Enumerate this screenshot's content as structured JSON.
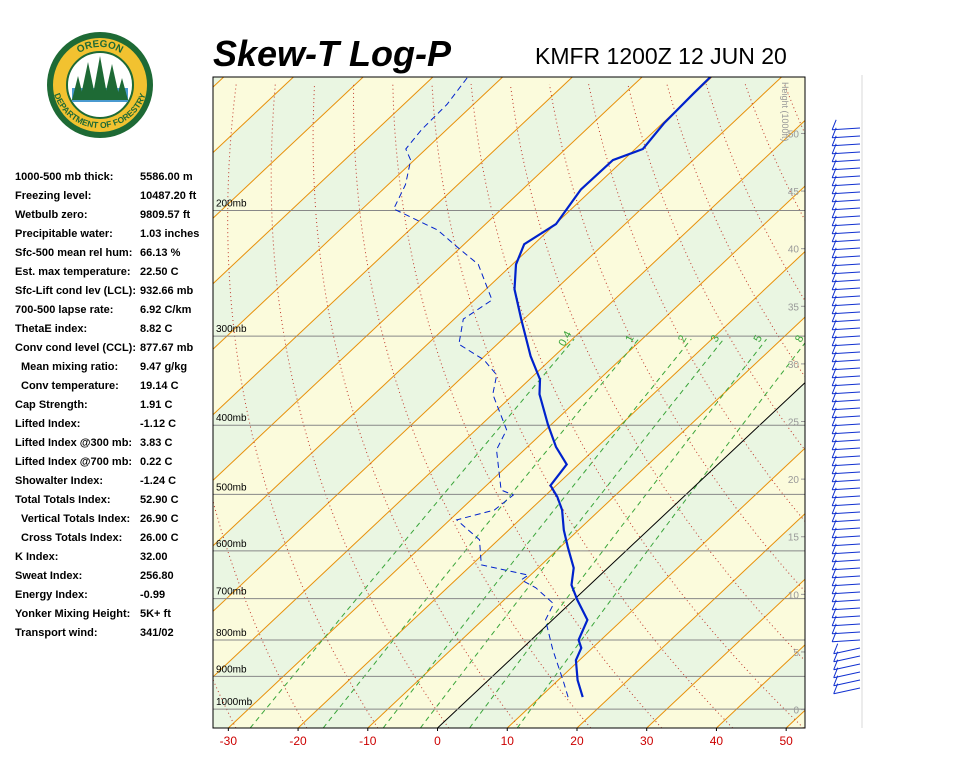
{
  "logo": {
    "top": "OREGON",
    "bottom": "DEPARTMENT OF FORESTRY"
  },
  "indices": [
    {
      "label": "1000-500 mb thick:",
      "value": "5586.00 m"
    },
    {
      "label": "Freezing level:",
      "value": "10487.20 ft"
    },
    {
      "label": "Wetbulb zero:",
      "value": "9809.57 ft"
    },
    {
      "label": "Precipitable water:",
      "value": "1.03 inches"
    },
    {
      "label": "Sfc-500 mean rel hum:",
      "value": "66.13 %"
    },
    {
      "label": "Est. max temperature:",
      "value": "22.50 C"
    },
    {
      "label": "Sfc-Lift cond lev (LCL):",
      "value": "932.66 mb"
    },
    {
      "label": "700-500 lapse rate:",
      "value": "6.92 C/km"
    },
    {
      "label": "ThetaE index:",
      "value": "8.82 C"
    },
    {
      "label": "Conv cond level (CCL):",
      "value": "877.67 mb"
    },
    {
      "label": "Mean mixing ratio:",
      "value": "9.47 g/kg"
    },
    {
      "label": "Conv temperature:",
      "value": "19.14 C"
    },
    {
      "label": "Cap Strength:",
      "value": "1.91 C"
    },
    {
      "label": "Lifted Index:",
      "value": "-1.12 C"
    },
    {
      "label": "Lifted Index @300 mb:",
      "value": "3.83 C"
    },
    {
      "label": "Lifted Index @700 mb:",
      "value": "0.22 C"
    },
    {
      "label": "Showalter Index:",
      "value": "-1.24 C"
    },
    {
      "label": "Total Totals Index:",
      "value": "52.90 C"
    },
    {
      "label": "Vertical Totals Index:",
      "value": "26.90 C"
    },
    {
      "label": "Cross Totals Index:",
      "value": "26.00 C"
    },
    {
      "label": "K Index:",
      "value": "32.00"
    },
    {
      "label": "Sweat Index:",
      "value": "256.80"
    },
    {
      "label": "Energy Index:",
      "value": "-0.99"
    },
    {
      "label": "Yonker Mixing Height:",
      "value": "5K+ ft"
    },
    {
      "label": "Transport wind:",
      "value": "341/02"
    }
  ],
  "chart_data": {
    "type": "skewt",
    "title": "Skew-T Log-P",
    "subtitle": "KMFR 1200Z 12 JUN 20",
    "xlim": [
      -32.2,
      52.7
    ],
    "xticks": [
      -30,
      -20,
      -10,
      0,
      10,
      20,
      30,
      40,
      50
    ],
    "ylim": [
      1063,
      130
    ],
    "log_y": true,
    "yticks": [
      {
        "value": 1000,
        "label": "1000mb"
      },
      {
        "value": 900,
        "label": "900mb"
      },
      {
        "value": 800,
        "label": "800mb"
      },
      {
        "value": 700,
        "label": "700mb"
      },
      {
        "value": 600,
        "label": "600mb"
      },
      {
        "value": 500,
        "label": "500mb"
      },
      {
        "value": 400,
        "label": "400mb"
      },
      {
        "value": 300,
        "label": "300mb"
      },
      {
        "value": 200,
        "label": "200mb"
      }
    ],
    "y2label": "Height (1000ft)",
    "y2lim": [
      -1.6,
      54.9
    ],
    "y2ticks": [
      0,
      5,
      10,
      15,
      20,
      25,
      30,
      35,
      40,
      45,
      50
    ],
    "mixing_ratio_labels": [
      0.4,
      1,
      2,
      3,
      5,
      8
    ],
    "series": [
      {
        "color": "#0022cc",
        "style": "solid",
        "pressure": [
          962,
          911,
          854,
          821,
          800,
          750,
          703,
          670,
          634,
          594,
          561,
          526,
          504,
          486,
          454,
          429,
          399,
          362,
          345,
          320,
          284,
          258,
          238,
          223,
          209,
          187,
          170,
          164,
          151,
          137,
          130
        ],
        "temperature": [
          16.1,
          12.8,
          9.5,
          8.4,
          6.8,
          5.0,
          0.5,
          -2.6,
          -4.9,
          -8.8,
          -12.1,
          -15.4,
          -18.1,
          -20.8,
          -21.7,
          -25.9,
          -30.5,
          -36.3,
          -38.5,
          -43.4,
          -50.4,
          -55.9,
          -59.5,
          -61.4,
          -59.9,
          -61.6,
          -61.5,
          -58.9,
          -59.8,
          -60.1,
          -60.2
        ]
      },
      {
        "color": "#0022cc",
        "style": "dashed",
        "pressure": [
          962,
          911,
          826,
          750,
          712,
          676,
          659,
          649,
          628,
          579,
          543,
          526,
          501,
          493,
          433,
          406,
          362,
          340,
          324,
          308,
          284,
          267,
          238,
          227,
          213,
          199,
          184,
          170,
          164,
          154,
          142,
          130
        ],
        "temperature": [
          14.0,
          10.7,
          4.6,
          -1.0,
          -2.3,
          -7.3,
          -10.6,
          -10.3,
          -18.6,
          -22.7,
          -29.0,
          -25.1,
          -24.7,
          -27.2,
          -34.0,
          -35.6,
          -43.0,
          -45.4,
          -49.5,
          -55.5,
          -58.7,
          -57.5,
          -64.9,
          -69.7,
          -76.0,
          -85.5,
          -87.5,
          -90.5,
          -92.9,
          -93.6,
          -93.8,
          -95.0
        ]
      }
    ]
  }
}
